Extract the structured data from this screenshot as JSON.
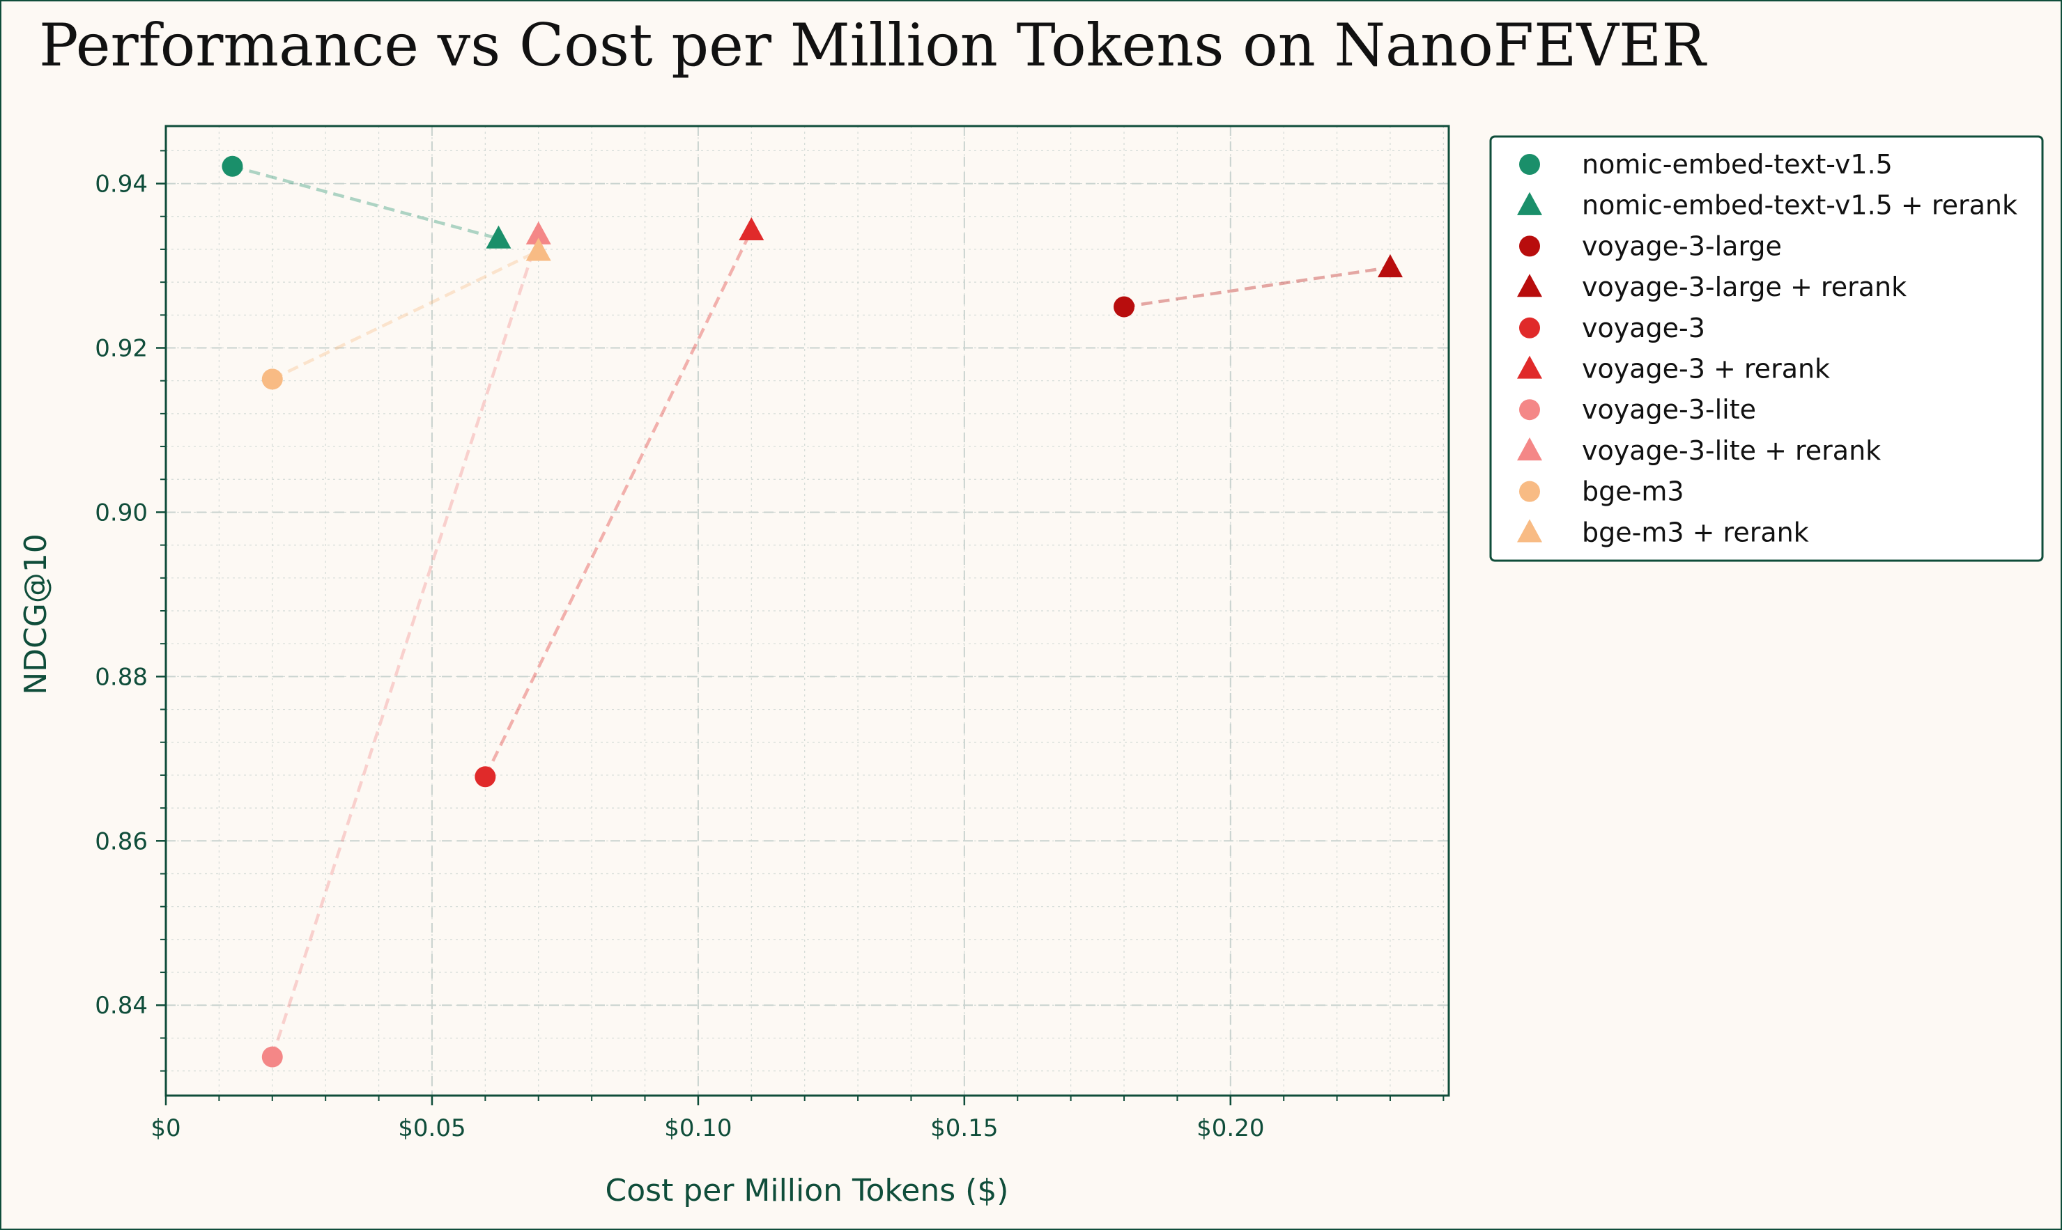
{
  "chart_data": {
    "type": "scatter",
    "title": "Performance vs Cost per Million Tokens on NanoFEVER",
    "xlabel": "Cost per Million Tokens ($)",
    "ylabel": "NDCG@10",
    "xlim": [
      0,
      0.241
    ],
    "ylim": [
      0.829,
      0.947
    ],
    "xticks": [
      0,
      0.05,
      0.1,
      0.15,
      0.2
    ],
    "xtick_labels": [
      "$0",
      "$0.05",
      "$0.10",
      "$0.15",
      "$0.20"
    ],
    "yticks": [
      0.84,
      0.86,
      0.88,
      0.9,
      0.92,
      0.94
    ],
    "ytick_labels": [
      "0.84",
      "0.86",
      "0.88",
      "0.90",
      "0.92",
      "0.94"
    ],
    "grid": true,
    "legend_position": "outside-right-top",
    "series": [
      {
        "name": "nomic-embed-text-v1.5",
        "marker": "circle",
        "color": "#1a8f6a",
        "x": [
          0.0125
        ],
        "y": [
          0.9421
        ]
      },
      {
        "name": "nomic-embed-text-v1.5 + rerank",
        "marker": "triangle",
        "color": "#1a8f6a",
        "x": [
          0.0625
        ],
        "y": [
          0.9333
        ]
      },
      {
        "name": "voyage-3-large",
        "marker": "circle",
        "color": "#b80d0d",
        "x": [
          0.18
        ],
        "y": [
          0.925
        ]
      },
      {
        "name": "voyage-3-large + rerank",
        "marker": "triangle",
        "color": "#b80d0d",
        "x": [
          0.23
        ],
        "y": [
          0.9298
        ]
      },
      {
        "name": "voyage-3",
        "marker": "circle",
        "color": "#e02a2a",
        "x": [
          0.06
        ],
        "y": [
          0.8678
        ]
      },
      {
        "name": "voyage-3 + rerank",
        "marker": "triangle",
        "color": "#e02a2a",
        "x": [
          0.11
        ],
        "y": [
          0.9343
        ]
      },
      {
        "name": "voyage-3-lite",
        "marker": "circle",
        "color": "#f48787",
        "x": [
          0.02
        ],
        "y": [
          0.8337
        ]
      },
      {
        "name": "voyage-3-lite + rerank",
        "marker": "triangle",
        "color": "#f48787",
        "x": [
          0.07
        ],
        "y": [
          0.9338
        ]
      },
      {
        "name": "bge-m3",
        "marker": "circle",
        "color": "#f8bb84",
        "x": [
          0.02
        ],
        "y": [
          0.9162
        ]
      },
      {
        "name": "bge-m3 + rerank",
        "marker": "triangle",
        "color": "#f8bb84",
        "x": [
          0.07
        ],
        "y": [
          0.9318
        ]
      }
    ],
    "connectors": [
      {
        "from": 0,
        "to": 1
      },
      {
        "from": 2,
        "to": 3
      },
      {
        "from": 4,
        "to": 5
      },
      {
        "from": 6,
        "to": 7
      },
      {
        "from": 8,
        "to": 9
      }
    ]
  },
  "colors": {
    "frame": "#0f4d3a",
    "background": "#fdf9f4",
    "grid": "#c9d3cf"
  }
}
